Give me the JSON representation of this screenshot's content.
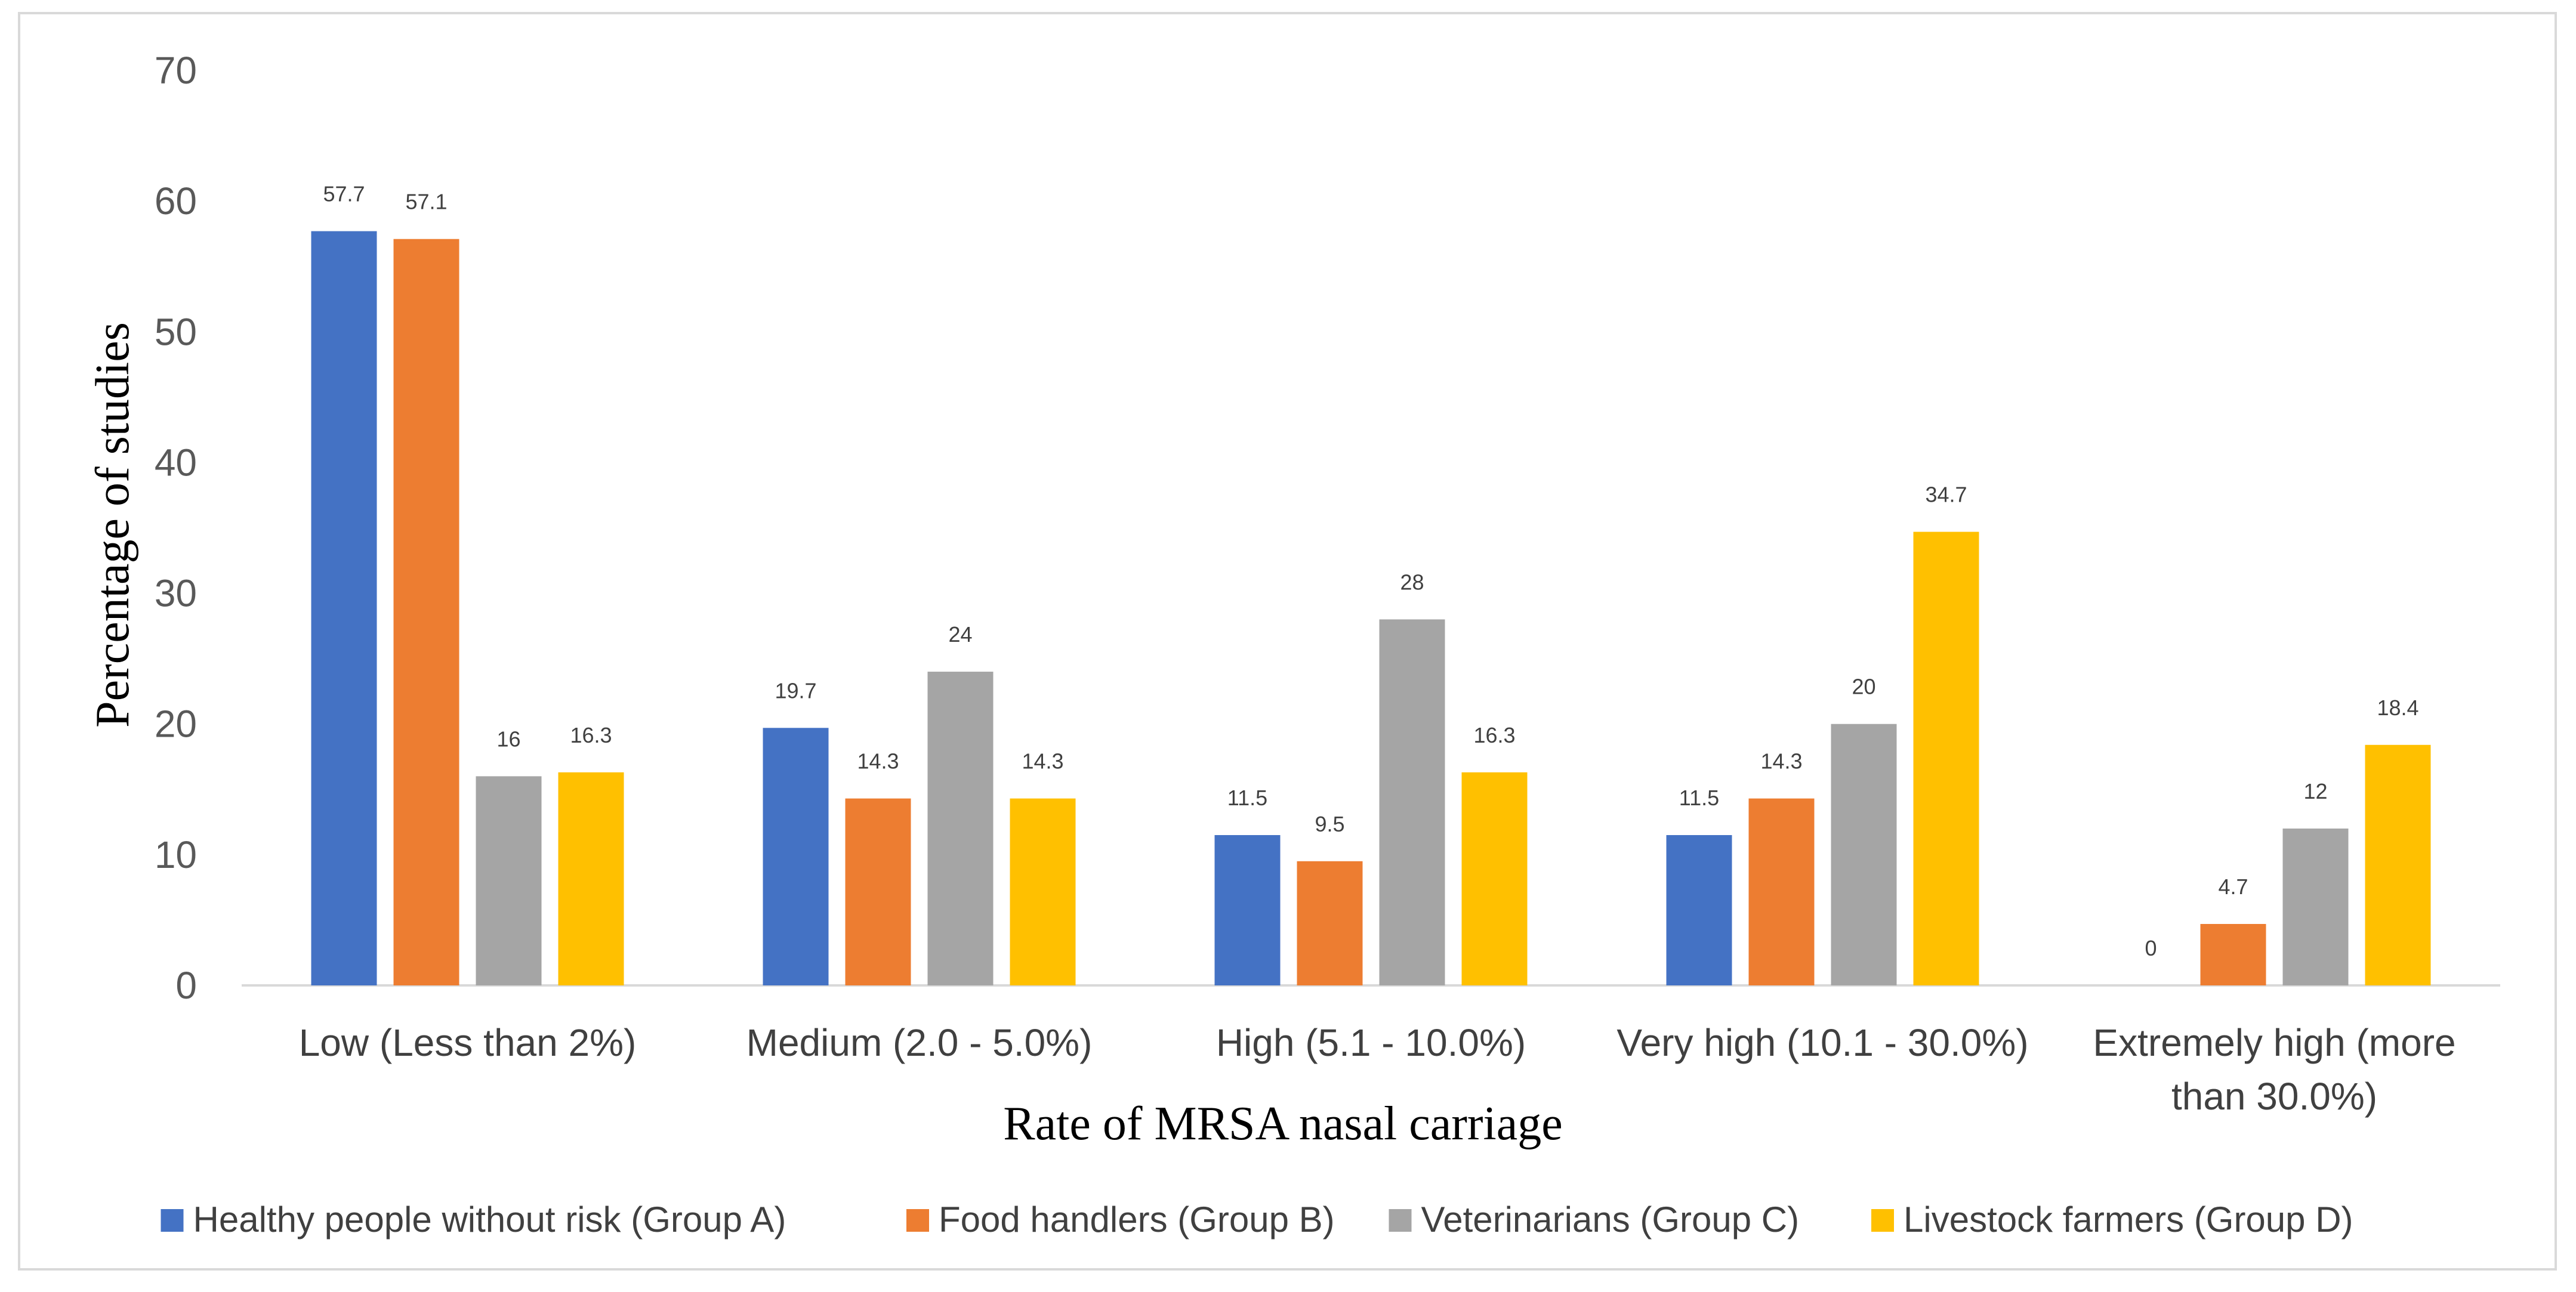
{
  "chart_data": {
    "type": "bar",
    "xlabel": "Rate of MRSA nasal carriage",
    "ylabel": "Percentage of studies",
    "ylim": [
      0,
      70
    ],
    "yticks": [
      0,
      10,
      20,
      30,
      40,
      50,
      60,
      70
    ],
    "grid": false,
    "legend_position": "bottom",
    "categories": [
      [
        "Low (Less than 2%)"
      ],
      [
        "Medium (2.0 - 5.0%)"
      ],
      [
        "High (5.1 - 10.0%)"
      ],
      [
        "Very high (10.1 - 30.0%)"
      ],
      [
        "Extremely high (more",
        "than 30.0%)"
      ]
    ],
    "series": [
      {
        "name": "Healthy people without risk (Group A)",
        "color": "#4472c4",
        "values": [
          57.7,
          19.7,
          11.5,
          11.5,
          0
        ]
      },
      {
        "name": "Food handlers (Group B)",
        "color": "#ed7d31",
        "values": [
          57.1,
          14.3,
          9.5,
          14.3,
          4.7
        ]
      },
      {
        "name": "Veterinarians (Group C)",
        "color": "#a5a5a5",
        "values": [
          16,
          24,
          28,
          20,
          12
        ]
      },
      {
        "name": "Livestock farmers (Group D)",
        "color": "#ffc000",
        "values": [
          16.3,
          14.3,
          16.3,
          34.7,
          18.4
        ]
      }
    ]
  }
}
